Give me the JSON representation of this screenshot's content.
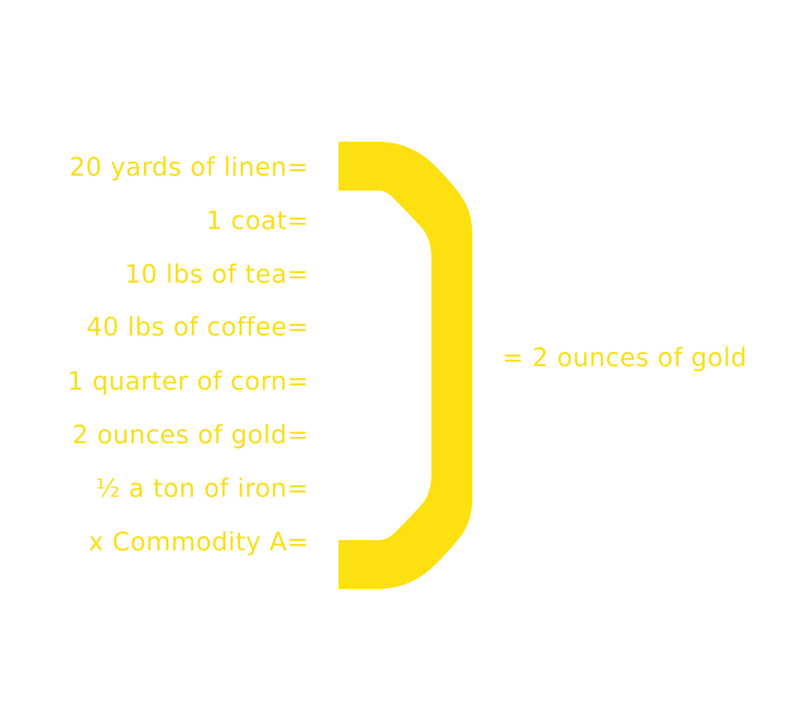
{
  "diagram": {
    "accent_color": "#f9df1a",
    "bracket_color": "#fde00f",
    "items": [
      "20 yards of linen=",
      "1 coat=",
      "10 lbs of tea=",
      "40 lbs of coffee=",
      "1 quarter of corn=",
      "2 ounces of gold=",
      "½ a ton of iron=",
      "x Commodity A="
    ],
    "result": "= 2 ounces of gold"
  }
}
